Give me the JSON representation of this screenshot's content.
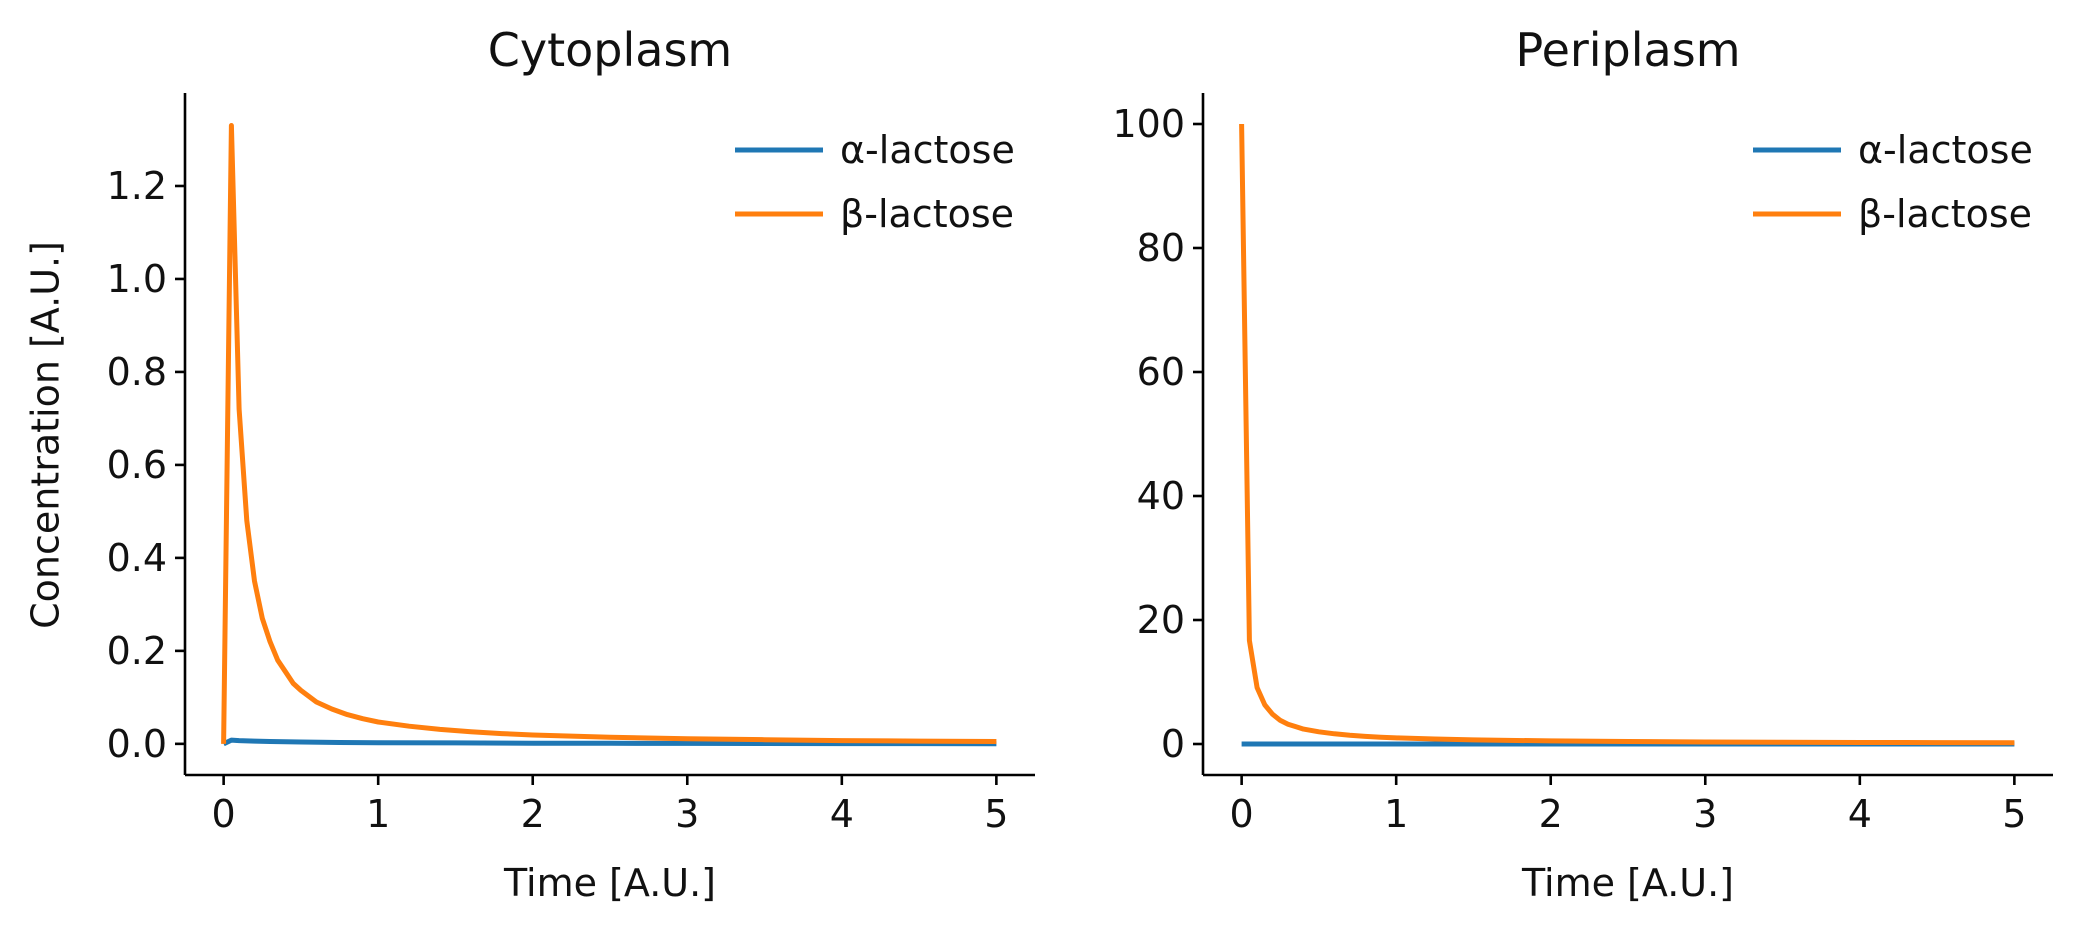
{
  "chart_data": [
    {
      "type": "line",
      "title": "Cytoplasm",
      "xlabel": "Time [A.U.]",
      "ylabel": "Concentration [A.U.]",
      "xlim": [
        -0.25,
        5.25
      ],
      "ylim": [
        -0.067,
        1.4
      ],
      "xticks": [
        0,
        1,
        2,
        3,
        4,
        5
      ],
      "xtick_labels": [
        "0",
        "1",
        "2",
        "3",
        "4",
        "5"
      ],
      "yticks": [
        0.0,
        0.2,
        0.4,
        0.6,
        0.8,
        1.0,
        1.2
      ],
      "ytick_labels": [
        "0.0",
        "0.2",
        "0.4",
        "0.6",
        "0.8",
        "1.0",
        "1.2"
      ],
      "grid": false,
      "legend": "top-right",
      "series": [
        {
          "name": "α-lactose",
          "color": "#1f77b4",
          "x": [
            0,
            0.05,
            0.1,
            0.2,
            0.3,
            0.5,
            0.75,
            1.0,
            1.5,
            2.0,
            2.5,
            3.0,
            3.5,
            4.0,
            4.5,
            5.0
          ],
          "y": [
            0.0,
            0.008,
            0.007,
            0.006,
            0.005,
            0.004,
            0.003,
            0.0025,
            0.002,
            0.0015,
            0.0012,
            0.001,
            0.0008,
            0.0006,
            0.0005,
            0.0004
          ]
        },
        {
          "name": "β-lactose",
          "color": "#ff7f0e",
          "x": [
            0,
            0.05,
            0.1,
            0.15,
            0.2,
            0.25,
            0.3,
            0.35,
            0.4,
            0.45,
            0.5,
            0.6,
            0.7,
            0.8,
            0.9,
            1.0,
            1.2,
            1.4,
            1.6,
            1.8,
            2.0,
            2.5,
            3.0,
            3.5,
            4.0,
            4.5,
            5.0
          ],
          "y": [
            0.0,
            1.33,
            0.72,
            0.48,
            0.35,
            0.27,
            0.22,
            0.18,
            0.155,
            0.13,
            0.115,
            0.09,
            0.075,
            0.063,
            0.054,
            0.047,
            0.038,
            0.031,
            0.026,
            0.022,
            0.019,
            0.014,
            0.011,
            0.009,
            0.007,
            0.006,
            0.005
          ]
        }
      ]
    },
    {
      "type": "line",
      "title": "Periplasm",
      "xlabel": "Time [A.U.]",
      "ylabel": "",
      "xlim": [
        -0.25,
        5.25
      ],
      "ylim": [
        -5,
        105
      ],
      "xticks": [
        0,
        1,
        2,
        3,
        4,
        5
      ],
      "xtick_labels": [
        "0",
        "1",
        "2",
        "3",
        "4",
        "5"
      ],
      "yticks": [
        0,
        20,
        40,
        60,
        80,
        100
      ],
      "ytick_labels": [
        "0",
        "20",
        "40",
        "60",
        "80",
        "100"
      ],
      "grid": false,
      "legend": "top-right",
      "series": [
        {
          "name": "α-lactose",
          "color": "#1f77b4",
          "x": [
            0,
            1,
            2,
            3,
            4,
            5
          ],
          "y": [
            0.0,
            0.0,
            0.0,
            0.0,
            0.0,
            0.0
          ]
        },
        {
          "name": "β-lactose",
          "color": "#ff7f0e",
          "x": [
            0,
            0.05,
            0.1,
            0.15,
            0.2,
            0.25,
            0.3,
            0.35,
            0.4,
            0.5,
            0.6,
            0.7,
            0.8,
            0.9,
            1.0,
            1.25,
            1.5,
            2.0,
            2.5,
            3.0,
            3.5,
            4.0,
            4.5,
            5.0
          ],
          "y": [
            100,
            16.7,
            9.1,
            6.3,
            4.8,
            3.8,
            3.2,
            2.8,
            2.4,
            1.96,
            1.64,
            1.41,
            1.23,
            1.1,
            0.99,
            0.8,
            0.66,
            0.5,
            0.4,
            0.33,
            0.28,
            0.25,
            0.22,
            0.2
          ]
        }
      ]
    }
  ]
}
